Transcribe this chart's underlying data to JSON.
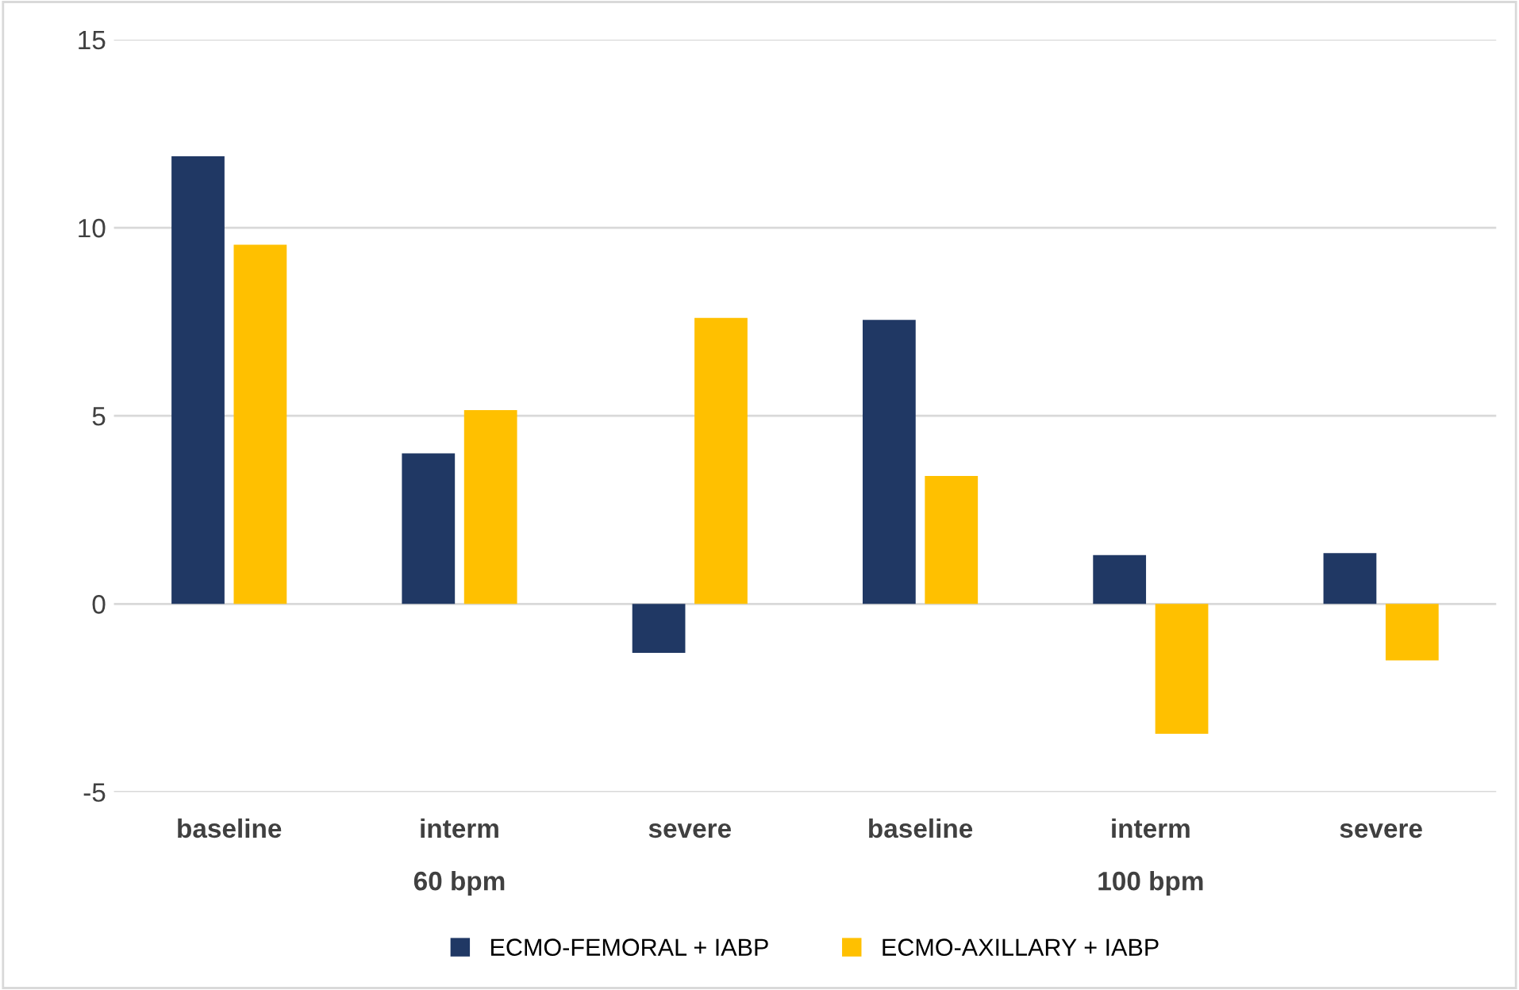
{
  "chart_data": {
    "type": "bar",
    "categories": [
      "baseline",
      "interm",
      "severe",
      "baseline",
      "interm",
      "severe"
    ],
    "series": [
      {
        "name": "ECMO-FEMORAL + IABP",
        "color": "#203864",
        "values": [
          11.9,
          4.0,
          -1.3,
          7.55,
          1.3,
          1.35
        ]
      },
      {
        "name": "ECMO-AXILLARY + IABP",
        "color": "#ffc000",
        "values": [
          9.55,
          5.15,
          7.6,
          3.4,
          -3.45,
          -1.5
        ]
      }
    ],
    "annotations": [
      "60 bpm",
      "100 bpm"
    ],
    "ylim": [
      -5,
      15
    ],
    "yticks": [
      -5,
      0,
      5,
      10,
      15
    ],
    "grid": "y",
    "legend": "bottom"
  }
}
